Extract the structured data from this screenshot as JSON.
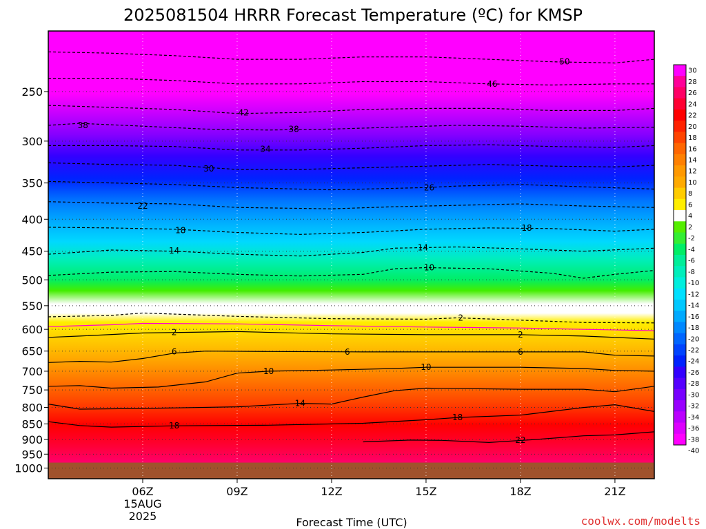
{
  "chart_data": {
    "type": "heatmap",
    "title": "2025081504 HRRR Forecast Temperature (ºC) for KMSP",
    "xlabel": "Forecast Time (UTC)",
    "ylabel": "",
    "credit": "coolwx.com/modelts",
    "x_range_hours": [
      3.0,
      22.25
    ],
    "y_range_hpa": [
      1040,
      200
    ],
    "x_ticks": [
      {
        "hour": 6,
        "label": "06Z",
        "sublabels": [
          "15AUG",
          "2025"
        ]
      },
      {
        "hour": 9,
        "label": "09Z",
        "sublabels": []
      },
      {
        "hour": 12,
        "label": "12Z",
        "sublabels": []
      },
      {
        "hour": 15,
        "label": "15Z",
        "sublabels": []
      },
      {
        "hour": 18,
        "label": "18Z",
        "sublabels": []
      },
      {
        "hour": 21,
        "label": "21Z",
        "sublabels": []
      }
    ],
    "y_ticks": [
      250,
      300,
      350,
      400,
      450,
      500,
      550,
      600,
      650,
      700,
      750,
      800,
      850,
      900,
      950,
      1000
    ],
    "surface_pressure_hpa": 980,
    "grid": "dotted",
    "colorbar": {
      "position": "right",
      "levels": [
        "30",
        "28",
        "26",
        "24",
        "22",
        "20",
        "18",
        "16",
        "14",
        "12",
        "10",
        "8",
        "6",
        "4",
        "2",
        "-2",
        "-4",
        "-6",
        "-8",
        "-10",
        "-12",
        "-14",
        "-16",
        "-18",
        "-20",
        "-22",
        "-24",
        "-26",
        "-28",
        "-30",
        "-32",
        "-34",
        "-36",
        "-38",
        "-40"
      ],
      "colors": [
        "#ff00ff",
        "#ff0099",
        "#ff0066",
        "#ff0033",
        "#ff0000",
        "#ff2200",
        "#ff4400",
        "#ff6600",
        "#ff8000",
        "#ff9900",
        "#ffaa00",
        "#ffcc00",
        "#ffee00",
        "#ffffff",
        "#55ee00",
        "#33ee33",
        "#00ee66",
        "#00ee99",
        "#00eebb",
        "#00eedd",
        "#00e0ff",
        "#00c8ff",
        "#00aaff",
        "#0088ff",
        "#0066ff",
        "#0044ff",
        "#0022ff",
        "#3300ff",
        "#5500ff",
        "#7700ff",
        "#9900ff",
        "#bb00ff",
        "#dd00ff",
        "#ff00ff"
      ]
    },
    "isotherms": [
      {
        "value": 22,
        "label": "22",
        "style": "solid",
        "points": [
          [
            13.0,
            908
          ],
          [
            14.5,
            902
          ],
          [
            15.5,
            903
          ],
          [
            17.0,
            910
          ],
          [
            18.5,
            900
          ],
          [
            20.0,
            888
          ],
          [
            21.0,
            885
          ],
          [
            22.25,
            875
          ]
        ]
      },
      {
        "value": 18,
        "label": "18",
        "style": "solid",
        "points": [
          [
            3.0,
            843
          ],
          [
            4.0,
            855
          ],
          [
            5.0,
            860
          ],
          [
            7.0,
            856
          ],
          [
            10.0,
            854
          ],
          [
            13.0,
            848
          ],
          [
            15.0,
            837
          ],
          [
            16.0,
            830
          ],
          [
            18.0,
            823
          ],
          [
            20.0,
            800
          ],
          [
            21.0,
            792
          ],
          [
            22.25,
            812
          ]
        ]
      },
      {
        "value": 14,
        "label": "14",
        "style": "solid",
        "points": [
          [
            3.0,
            790
          ],
          [
            4.0,
            805
          ],
          [
            6.0,
            803
          ],
          [
            9.0,
            798
          ],
          [
            11.0,
            788
          ],
          [
            12.0,
            790
          ],
          [
            13.0,
            770
          ],
          [
            14.0,
            752
          ],
          [
            15.0,
            745
          ],
          [
            18.0,
            748
          ],
          [
            20.0,
            748
          ],
          [
            21.0,
            755
          ],
          [
            22.25,
            740
          ]
        ]
      },
      {
        "value": 10,
        "label": "10",
        "style": "solid",
        "points": [
          [
            3.0,
            740
          ],
          [
            4.0,
            738
          ],
          [
            5.0,
            745
          ],
          [
            6.5,
            742
          ],
          [
            8.0,
            728
          ],
          [
            9.0,
            705
          ],
          [
            10.0,
            700
          ],
          [
            12.0,
            697
          ],
          [
            14.0,
            693
          ],
          [
            15.0,
            690
          ],
          [
            18.0,
            690
          ],
          [
            20.0,
            693
          ],
          [
            21.0,
            698
          ],
          [
            22.25,
            700
          ]
        ]
      },
      {
        "value": 6,
        "label": "6",
        "style": "solid",
        "points": [
          [
            3.0,
            678
          ],
          [
            4.0,
            675
          ],
          [
            5.0,
            677
          ],
          [
            6.0,
            668
          ],
          [
            7.0,
            655
          ],
          [
            8.0,
            650
          ],
          [
            10.0,
            651
          ],
          [
            13.0,
            652
          ],
          [
            15.0,
            652
          ],
          [
            18.0,
            652
          ],
          [
            20.0,
            652
          ],
          [
            21.0,
            660
          ],
          [
            22.25,
            662
          ]
        ]
      },
      {
        "value": 2,
        "label": "2",
        "style": "solid",
        "points": [
          [
            3.0,
            618
          ],
          [
            4.0,
            615
          ],
          [
            6.0,
            608
          ],
          [
            9.0,
            605
          ],
          [
            12.0,
            610
          ],
          [
            15.0,
            612
          ],
          [
            18.0,
            612
          ],
          [
            20.0,
            615
          ],
          [
            22.25,
            622
          ]
        ]
      },
      {
        "value": 0,
        "label": "",
        "style": "magenta",
        "points": [
          [
            3.0,
            594
          ],
          [
            5.0,
            590
          ],
          [
            6.0,
            587
          ],
          [
            9.0,
            588
          ],
          [
            12.0,
            592
          ],
          [
            15.0,
            595
          ],
          [
            18.0,
            597
          ],
          [
            20.0,
            600
          ],
          [
            22.25,
            603
          ]
        ]
      },
      {
        "value": -2,
        "label": "2",
        "style": "dashed",
        "points": [
          [
            3.0,
            573
          ],
          [
            5.0,
            570
          ],
          [
            6.0,
            565
          ],
          [
            9.0,
            572
          ],
          [
            12.0,
            577
          ],
          [
            15.0,
            578
          ],
          [
            16.0,
            575
          ],
          [
            18.0,
            580
          ],
          [
            20.0,
            585
          ],
          [
            22.25,
            586
          ]
        ]
      },
      {
        "value": -10,
        "label": "10",
        "style": "dashed",
        "points": [
          [
            3.0,
            492
          ],
          [
            5.0,
            486
          ],
          [
            7.0,
            485
          ],
          [
            9.0,
            490
          ],
          [
            11.0,
            493
          ],
          [
            13.0,
            490
          ],
          [
            14.0,
            480
          ],
          [
            15.0,
            478
          ],
          [
            17.0,
            480
          ],
          [
            19.0,
            488
          ],
          [
            20.0,
            497
          ],
          [
            21.0,
            490
          ],
          [
            22.25,
            483
          ]
        ]
      },
      {
        "value": -14,
        "label": "14",
        "style": "dashed",
        "points": [
          [
            3.0,
            455
          ],
          [
            5.0,
            448
          ],
          [
            7.0,
            450
          ],
          [
            9.0,
            455
          ],
          [
            11.0,
            458
          ],
          [
            13.0,
            452
          ],
          [
            14.0,
            445
          ],
          [
            16.0,
            443
          ],
          [
            18.0,
            446
          ],
          [
            20.0,
            450
          ],
          [
            22.25,
            445
          ]
        ]
      },
      {
        "value": -18,
        "label": "18",
        "style": "dashed",
        "points": [
          [
            3.0,
            412
          ],
          [
            5.0,
            413
          ],
          [
            7.0,
            415
          ],
          [
            9.0,
            420
          ],
          [
            11.0,
            423
          ],
          [
            13.0,
            420
          ],
          [
            15.0,
            415
          ],
          [
            17.0,
            413
          ],
          [
            19.0,
            414
          ],
          [
            21.0,
            418
          ],
          [
            22.25,
            415
          ]
        ]
      },
      {
        "value": -22,
        "label": "22",
        "style": "dashed",
        "points": [
          [
            3.0,
            375
          ],
          [
            5.0,
            377
          ],
          [
            7.0,
            378
          ],
          [
            9.0,
            383
          ],
          [
            12.0,
            385
          ],
          [
            14.0,
            382
          ],
          [
            16.0,
            380
          ],
          [
            18.0,
            378
          ],
          [
            20.0,
            381
          ],
          [
            22.25,
            383
          ]
        ]
      },
      {
        "value": -26,
        "label": "26",
        "style": "dashed",
        "points": [
          [
            3.0,
            348
          ],
          [
            5.0,
            350
          ],
          [
            7.0,
            352
          ],
          [
            9.0,
            356
          ],
          [
            12.0,
            359
          ],
          [
            14.0,
            357
          ],
          [
            15.0,
            356
          ],
          [
            16.0,
            354
          ],
          [
            18.0,
            352
          ],
          [
            20.0,
            355
          ],
          [
            22.25,
            358
          ]
        ]
      },
      {
        "value": -30,
        "label": "30",
        "style": "dashed",
        "points": [
          [
            3.0,
            325
          ],
          [
            5.0,
            327
          ],
          [
            7.0,
            328
          ],
          [
            9.0,
            333
          ],
          [
            11.0,
            333
          ],
          [
            13.0,
            331
          ],
          [
            15.0,
            329
          ],
          [
            17.0,
            327
          ],
          [
            19.0,
            329
          ],
          [
            21.0,
            330
          ],
          [
            22.25,
            328
          ]
        ]
      },
      {
        "value": -34,
        "label": "34",
        "style": "dashed",
        "points": [
          [
            3.0,
            305
          ],
          [
            5.0,
            305
          ],
          [
            7.0,
            306
          ],
          [
            9.0,
            310
          ],
          [
            11.0,
            310
          ],
          [
            13.0,
            308
          ],
          [
            15.0,
            305
          ],
          [
            17.0,
            304
          ],
          [
            19.0,
            306
          ],
          [
            21.0,
            307
          ],
          [
            22.25,
            305
          ]
        ]
      },
      {
        "value": -38,
        "label": "38",
        "style": "dashed",
        "points": [
          [
            3.0,
            283
          ],
          [
            4.0,
            281
          ],
          [
            6.0,
            284
          ],
          [
            8.0,
            287
          ],
          [
            10.0,
            288
          ],
          [
            12.0,
            287
          ],
          [
            14.0,
            285
          ],
          [
            16.0,
            283
          ],
          [
            18.0,
            284
          ],
          [
            20.0,
            286
          ],
          [
            22.25,
            285
          ]
        ]
      },
      {
        "value": -42,
        "label": "42",
        "style": "dashed",
        "points": [
          [
            3.0,
            263
          ],
          [
            5.0,
            265
          ],
          [
            7.0,
            267
          ],
          [
            9.0,
            271
          ],
          [
            11.0,
            270
          ],
          [
            13.0,
            267
          ],
          [
            15.0,
            266
          ],
          [
            17.0,
            266
          ],
          [
            19.0,
            268
          ],
          [
            21.0,
            268
          ],
          [
            22.25,
            266
          ]
        ]
      },
      {
        "value": -46,
        "label": "46",
        "style": "dashed",
        "points": [
          [
            3.0,
            238
          ],
          [
            5.0,
            238
          ],
          [
            7.0,
            240
          ],
          [
            9.0,
            243
          ],
          [
            11.0,
            243
          ],
          [
            13.0,
            241
          ],
          [
            15.0,
            241
          ],
          [
            17.0,
            243
          ],
          [
            19.0,
            244
          ],
          [
            21.0,
            243
          ],
          [
            22.25,
            243
          ]
        ]
      },
      {
        "value": -50,
        "label": "50",
        "style": "dashed",
        "points": [
          [
            3.0,
            216
          ],
          [
            5.0,
            217
          ],
          [
            7.0,
            219
          ],
          [
            9.0,
            222
          ],
          [
            11.0,
            222
          ],
          [
            13.0,
            220
          ],
          [
            15.0,
            220
          ],
          [
            17.0,
            222
          ],
          [
            19.0,
            224
          ],
          [
            21.0,
            225
          ],
          [
            22.25,
            222
          ]
        ]
      }
    ],
    "contour_labels": [
      {
        "text": "38",
        "hour": 4.1,
        "hpa": 283
      },
      {
        "text": "42",
        "hour": 9.2,
        "hpa": 270
      },
      {
        "text": "38",
        "hour": 10.8,
        "hpa": 287
      },
      {
        "text": "34",
        "hour": 9.9,
        "hpa": 309
      },
      {
        "text": "30",
        "hour": 8.1,
        "hpa": 332
      },
      {
        "text": "22",
        "hour": 6.0,
        "hpa": 381
      },
      {
        "text": "18",
        "hour": 7.2,
        "hpa": 417
      },
      {
        "text": "14",
        "hour": 7.0,
        "hpa": 449
      },
      {
        "text": "26",
        "hour": 15.1,
        "hpa": 356
      },
      {
        "text": "14",
        "hour": 14.9,
        "hpa": 444
      },
      {
        "text": "10",
        "hour": 15.1,
        "hpa": 478
      },
      {
        "text": "50",
        "hour": 19.4,
        "hpa": 224
      },
      {
        "text": "46",
        "hour": 17.1,
        "hpa": 243
      },
      {
        "text": "18",
        "hour": 18.2,
        "hpa": 413
      },
      {
        "text": "2",
        "hour": 7.0,
        "hpa": 607
      },
      {
        "text": "2",
        "hour": 16.1,
        "hpa": 575
      },
      {
        "text": "2",
        "hour": 18.0,
        "hpa": 612
      },
      {
        "text": "6",
        "hour": 7.0,
        "hpa": 651
      },
      {
        "text": "6",
        "hour": 12.5,
        "hpa": 652
      },
      {
        "text": "6",
        "hour": 18.0,
        "hpa": 652
      },
      {
        "text": "10",
        "hour": 10.0,
        "hpa": 700
      },
      {
        "text": "10",
        "hour": 15.0,
        "hpa": 690
      },
      {
        "text": "14",
        "hour": 11.0,
        "hpa": 788
      },
      {
        "text": "18",
        "hour": 7.0,
        "hpa": 856
      },
      {
        "text": "18",
        "hour": 16.0,
        "hpa": 830
      },
      {
        "text": "22",
        "hour": 18.0,
        "hpa": 902
      }
    ]
  }
}
